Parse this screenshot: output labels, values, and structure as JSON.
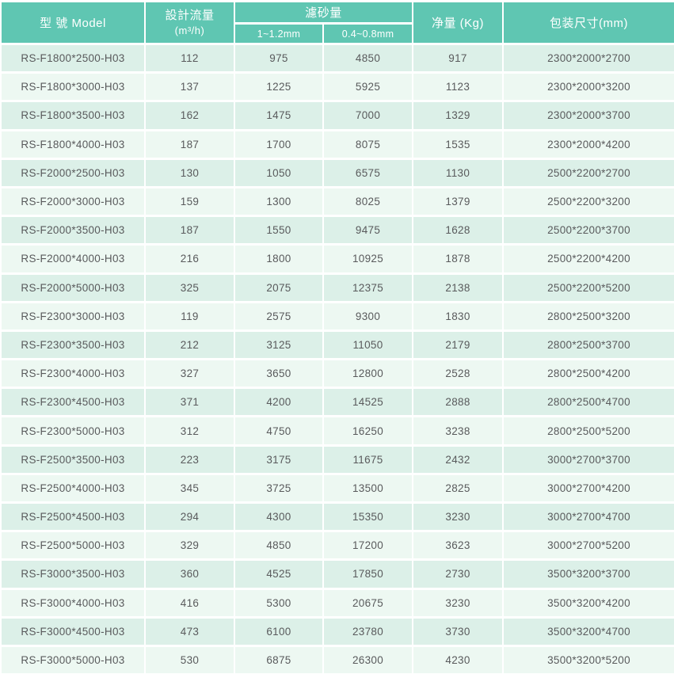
{
  "colors": {
    "header_bg": "#5fc6b2",
    "row_odd": "#dcf0e8",
    "row_even": "#edf8f2",
    "text": "#595a5c",
    "header_text": "#ffffff"
  },
  "table": {
    "headers": {
      "model": "型 號 Model",
      "flow_line1": "設計流量",
      "flow_line2": "(m³/h)",
      "sand_group": "濾砂量",
      "sand_sub1": "1~1.2mm",
      "sand_sub2": "0.4~0.8mm",
      "net_weight": "净量 (Kg)",
      "package_size": "包装尺寸(mm)"
    }
  },
  "chart_data": {
    "type": "table",
    "title": "",
    "columns": [
      "型 號 Model",
      "設計流量 (m³/h)",
      "濾砂量 1~1.2mm",
      "濾砂量 0.4~0.8mm",
      "净量 (Kg)",
      "包装尺寸(mm)"
    ],
    "rows": [
      [
        "RS-F1800*2500-H03",
        "112",
        "975",
        "4850",
        "917",
        "2300*2000*2700"
      ],
      [
        "RS-F1800*3000-H03",
        "137",
        "1225",
        "5925",
        "1123",
        "2300*2000*3200"
      ],
      [
        "RS-F1800*3500-H03",
        "162",
        "1475",
        "7000",
        "1329",
        "2300*2000*3700"
      ],
      [
        "RS-F1800*4000-H03",
        "187",
        "1700",
        "8075",
        "1535",
        "2300*2000*4200"
      ],
      [
        "RS-F2000*2500-H03",
        "130",
        "1050",
        "6575",
        "1130",
        "2500*2200*2700"
      ],
      [
        "RS-F2000*3000-H03",
        "159",
        "1300",
        "8025",
        "1379",
        "2500*2200*3200"
      ],
      [
        "RS-F2000*3500-H03",
        "187",
        "1550",
        "9475",
        "1628",
        "2500*2200*3700"
      ],
      [
        "RS-F2000*4000-H03",
        "216",
        "1800",
        "10925",
        "1878",
        "2500*2200*4200"
      ],
      [
        "RS-F2000*5000-H03",
        "325",
        "2075",
        "12375",
        "2138",
        "2500*2200*5200"
      ],
      [
        "RS-F2300*3000-H03",
        "119",
        "2575",
        "9300",
        "1830",
        "2800*2500*3200"
      ],
      [
        "RS-F2300*3500-H03",
        "212",
        "3125",
        "11050",
        "2179",
        "2800*2500*3700"
      ],
      [
        "RS-F2300*4000-H03",
        "327",
        "3650",
        "12800",
        "2528",
        "2800*2500*4200"
      ],
      [
        "RS-F2300*4500-H03",
        "371",
        "4200",
        "14525",
        "2888",
        "2800*2500*4700"
      ],
      [
        "RS-F2300*5000-H03",
        "312",
        "4750",
        "16250",
        "3238",
        "2800*2500*5200"
      ],
      [
        "RS-F2500*3500-H03",
        "223",
        "3175",
        "11675",
        "2432",
        "3000*2700*3700"
      ],
      [
        "RS-F2500*4000-H03",
        "345",
        "3725",
        "13500",
        "2825",
        "3000*2700*4200"
      ],
      [
        "RS-F2500*4500-H03",
        "294",
        "4300",
        "15350",
        "3230",
        "3000*2700*4700"
      ],
      [
        "RS-F2500*5000-H03",
        "329",
        "4850",
        "17200",
        "3623",
        "3000*2700*5200"
      ],
      [
        "RS-F3000*3500-H03",
        "360",
        "4525",
        "17850",
        "2730",
        "3500*3200*3700"
      ],
      [
        "RS-F3000*4000-H03",
        "416",
        "5300",
        "20675",
        "3230",
        "3500*3200*4200"
      ],
      [
        "RS-F3000*4500-H03",
        "473",
        "6100",
        "23780",
        "3730",
        "3500*3200*4700"
      ],
      [
        "RS-F3000*5000-H03",
        "530",
        "6875",
        "26300",
        "4230",
        "3500*3200*5200"
      ]
    ]
  }
}
